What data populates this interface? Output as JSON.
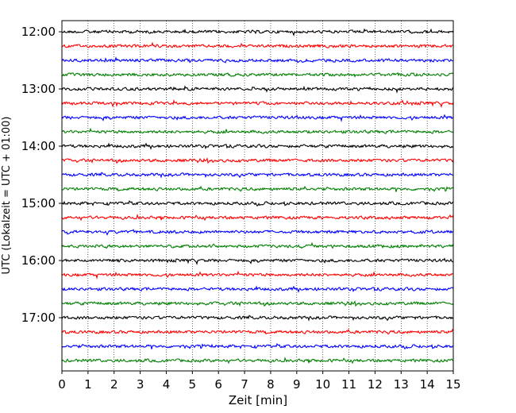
{
  "chart_data": {
    "type": "line",
    "subtype": "helicorder",
    "title": "",
    "xlabel": "Zeit  [min]",
    "ylabel": "UTC (Lokalzeit = UTC + 01:00)",
    "xlim": [
      0,
      15
    ],
    "x_ticks": [
      "0",
      "1",
      "2",
      "3",
      "4",
      "5",
      "6",
      "7",
      "8",
      "9",
      "10",
      "11",
      "12",
      "13",
      "14",
      "15"
    ],
    "y_tick_labels": [
      "12:00",
      "13:00",
      "14:00",
      "15:00",
      "16:00",
      "17:00"
    ],
    "trace_start_times": [
      "12:00",
      "12:15",
      "12:30",
      "12:45",
      "13:00",
      "13:15",
      "13:30",
      "13:45",
      "14:00",
      "14:15",
      "14:30",
      "14:45",
      "15:00",
      "15:15",
      "15:30",
      "15:45",
      "16:00",
      "16:15",
      "16:30",
      "16:45",
      "17:00",
      "17:15",
      "17:30",
      "17:45"
    ],
    "trace_colors": [
      "#000000",
      "#ff0000",
      "#0000ff",
      "#008000"
    ],
    "vertical_grid": "dotted, every 1 min"
  }
}
